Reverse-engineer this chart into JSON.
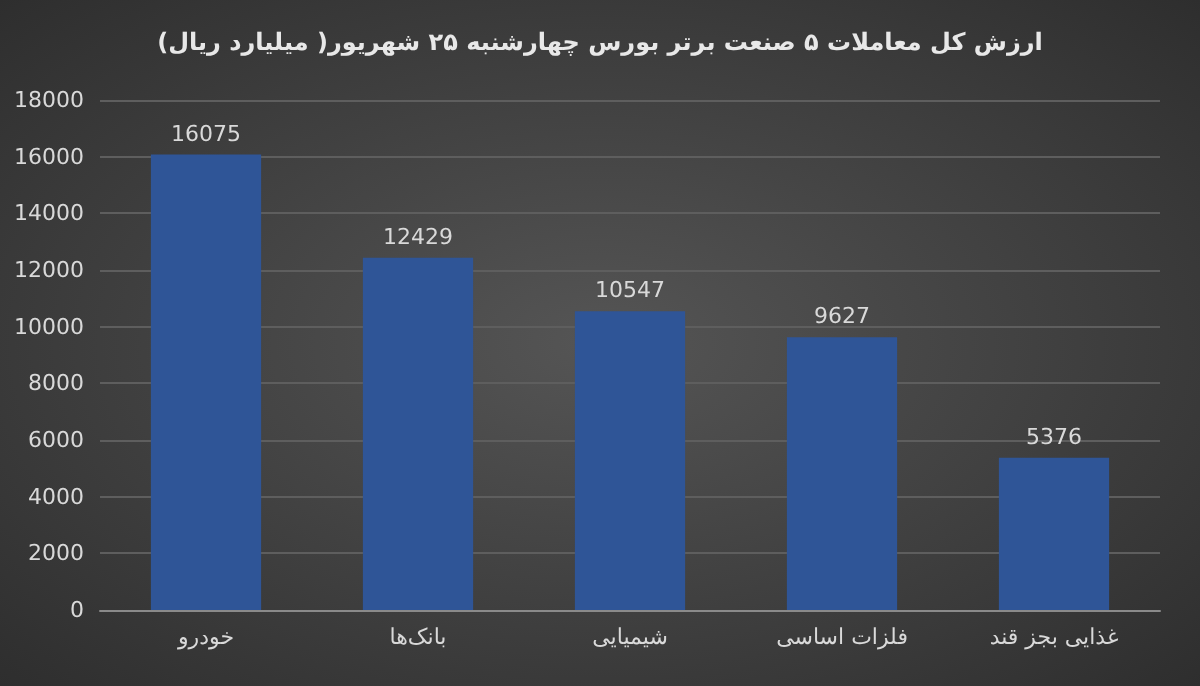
{
  "chart_data": {
    "type": "bar",
    "title": "ارزش کل معاملات ۵ صنعت برتر بورس چهارشنبه ۲۵ شهریور( میلیارد ریال)",
    "categories": [
      "خودرو",
      "بانک‌ها",
      "شیمیایی",
      "فلزات اساسی",
      "غذایی بجز قند"
    ],
    "values": [
      16075,
      12429,
      10547,
      9627,
      5376
    ],
    "color": "#2f5597",
    "ylim": [
      0,
      18000
    ],
    "yticks": [
      0,
      2000,
      4000,
      6000,
      8000,
      10000,
      12000,
      14000,
      16000,
      18000
    ],
    "grid": "y",
    "data_labels": true
  }
}
